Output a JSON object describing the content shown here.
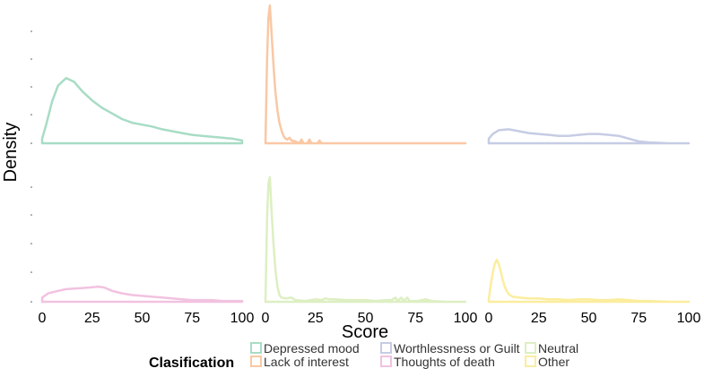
{
  "chart_data": {
    "type": "area",
    "facets": {
      "rows": 2,
      "cols": 3
    },
    "xlabel": "Score",
    "ylabel": "Density",
    "xlim": [
      0,
      100
    ],
    "xticks": [
      "0",
      "25",
      "50",
      "75",
      "100"
    ],
    "y_tick_labels_shown": false,
    "grid": false,
    "legend": {
      "title": "Clasification",
      "placement": "bottom",
      "entries": [
        {
          "name": "Depressed mood",
          "color": "#a8dcc5"
        },
        {
          "name": "Lack of interest",
          "color": "#f9c8a5"
        },
        {
          "name": "Worthlessness or Guilt",
          "color": "#c6cce4"
        },
        {
          "name": "Thoughts of death",
          "color": "#f2c2e0"
        },
        {
          "name": "Neutral",
          "color": "#ddefc2"
        },
        {
          "name": "Other",
          "color": "#fbed9e"
        }
      ]
    },
    "series": [
      {
        "name": "Depressed mood",
        "color": "#a8dcc5",
        "row": 0,
        "col": 0,
        "ymax": 0.15,
        "points": [
          [
            0,
            0.005
          ],
          [
            2,
            0.02
          ],
          [
            5,
            0.045
          ],
          [
            8,
            0.062
          ],
          [
            12,
            0.07
          ],
          [
            16,
            0.066
          ],
          [
            20,
            0.056
          ],
          [
            25,
            0.046
          ],
          [
            30,
            0.038
          ],
          [
            35,
            0.032
          ],
          [
            40,
            0.026
          ],
          [
            45,
            0.022
          ],
          [
            50,
            0.02
          ],
          [
            55,
            0.018
          ],
          [
            60,
            0.015
          ],
          [
            65,
            0.013
          ],
          [
            70,
            0.011
          ],
          [
            75,
            0.009
          ],
          [
            80,
            0.008
          ],
          [
            85,
            0.007
          ],
          [
            90,
            0.006
          ],
          [
            95,
            0.005
          ],
          [
            100,
            0.003
          ]
        ]
      },
      {
        "name": "Lack of interest",
        "color": "#f9c8a5",
        "row": 0,
        "col": 1,
        "ymax": 0.15,
        "points": [
          [
            0,
            0.0
          ],
          [
            0.8,
            0.09
          ],
          [
            1.5,
            0.135
          ],
          [
            2.2,
            0.148
          ],
          [
            3,
            0.12
          ],
          [
            4,
            0.085
          ],
          [
            5,
            0.055
          ],
          [
            6,
            0.035
          ],
          [
            7,
            0.022
          ],
          [
            8,
            0.014
          ],
          [
            9,
            0.008
          ],
          [
            10,
            0.005
          ],
          [
            11,
            0.004
          ],
          [
            12,
            0.006
          ],
          [
            13,
            0.003
          ],
          [
            15,
            0.002
          ],
          [
            17,
            0.0
          ],
          [
            18,
            0.004
          ],
          [
            19,
            0.0
          ],
          [
            21,
            0.0
          ],
          [
            22,
            0.004
          ],
          [
            23,
            0.0
          ],
          [
            26,
            0.0
          ],
          [
            27,
            0.003
          ],
          [
            28,
            0.0
          ],
          [
            35,
            0.0
          ],
          [
            50,
            0.0
          ],
          [
            75,
            0.0
          ],
          [
            100,
            0.0
          ]
        ]
      },
      {
        "name": "Worthlessness or Guilt",
        "color": "#c6cce4",
        "row": 0,
        "col": 2,
        "ymax": 0.15,
        "points": [
          [
            0,
            0.005
          ],
          [
            2,
            0.01
          ],
          [
            5,
            0.014
          ],
          [
            10,
            0.015
          ],
          [
            15,
            0.013
          ],
          [
            20,
            0.011
          ],
          [
            25,
            0.01
          ],
          [
            30,
            0.009
          ],
          [
            35,
            0.008
          ],
          [
            40,
            0.008
          ],
          [
            45,
            0.009
          ],
          [
            50,
            0.01
          ],
          [
            55,
            0.01
          ],
          [
            60,
            0.009
          ],
          [
            65,
            0.008
          ],
          [
            70,
            0.005
          ],
          [
            75,
            0.002
          ],
          [
            80,
            0.001
          ],
          [
            90,
            0.0
          ],
          [
            100,
            0.0
          ]
        ]
      },
      {
        "name": "Thoughts of death",
        "color": "#f2c2e0",
        "row": 1,
        "col": 0,
        "ymax": 0.15,
        "points": [
          [
            0,
            0.005
          ],
          [
            3,
            0.01
          ],
          [
            8,
            0.013
          ],
          [
            12,
            0.015
          ],
          [
            18,
            0.016
          ],
          [
            24,
            0.017
          ],
          [
            28,
            0.018
          ],
          [
            31,
            0.017
          ],
          [
            35,
            0.013
          ],
          [
            40,
            0.01
          ],
          [
            45,
            0.008
          ],
          [
            50,
            0.007
          ],
          [
            55,
            0.006
          ],
          [
            60,
            0.005
          ],
          [
            65,
            0.004
          ],
          [
            70,
            0.003
          ],
          [
            75,
            0.002
          ],
          [
            80,
            0.002
          ],
          [
            85,
            0.002
          ],
          [
            90,
            0.001
          ],
          [
            95,
            0.001
          ],
          [
            100,
            0.001
          ]
        ]
      },
      {
        "name": "Neutral",
        "color": "#ddefc2",
        "row": 1,
        "col": 1,
        "ymax": 0.15,
        "points": [
          [
            0,
            0.0
          ],
          [
            0.8,
            0.1
          ],
          [
            1.5,
            0.14
          ],
          [
            2.2,
            0.148
          ],
          [
            3,
            0.11
          ],
          [
            4,
            0.07
          ],
          [
            5,
            0.038
          ],
          [
            6,
            0.018
          ],
          [
            7,
            0.008
          ],
          [
            8,
            0.005
          ],
          [
            10,
            0.004
          ],
          [
            13,
            0.005
          ],
          [
            15,
            0.002
          ],
          [
            20,
            0.001
          ],
          [
            25,
            0.003
          ],
          [
            28,
            0.002
          ],
          [
            30,
            0.004
          ],
          [
            32,
            0.003
          ],
          [
            35,
            0.003
          ],
          [
            40,
            0.002
          ],
          [
            45,
            0.002
          ],
          [
            50,
            0.002
          ],
          [
            55,
            0.001
          ],
          [
            60,
            0.002
          ],
          [
            63,
            0.002
          ],
          [
            65,
            0.005
          ],
          [
            66,
            0.001
          ],
          [
            68,
            0.005
          ],
          [
            69,
            0.001
          ],
          [
            71,
            0.005
          ],
          [
            72,
            0.001
          ],
          [
            76,
            0.001
          ],
          [
            80,
            0.003
          ],
          [
            83,
            0.001
          ],
          [
            90,
            0.0
          ],
          [
            100,
            0.0
          ]
        ]
      },
      {
        "name": "Other",
        "color": "#fbed9e",
        "row": 1,
        "col": 2,
        "ymax": 0.15,
        "points": [
          [
            0,
            0.003
          ],
          [
            1,
            0.02
          ],
          [
            2,
            0.035
          ],
          [
            3,
            0.045
          ],
          [
            4,
            0.05
          ],
          [
            5,
            0.045
          ],
          [
            6,
            0.036
          ],
          [
            7,
            0.026
          ],
          [
            8,
            0.018
          ],
          [
            9,
            0.013
          ],
          [
            10,
            0.009
          ],
          [
            12,
            0.006
          ],
          [
            15,
            0.005
          ],
          [
            20,
            0.004
          ],
          [
            25,
            0.004
          ],
          [
            30,
            0.003
          ],
          [
            35,
            0.003
          ],
          [
            40,
            0.002
          ],
          [
            45,
            0.003
          ],
          [
            50,
            0.003
          ],
          [
            55,
            0.002
          ],
          [
            60,
            0.002
          ],
          [
            65,
            0.003
          ],
          [
            70,
            0.002
          ],
          [
            75,
            0.001
          ],
          [
            80,
            0.001
          ],
          [
            90,
            0.0
          ],
          [
            100,
            0.0
          ]
        ]
      }
    ]
  }
}
